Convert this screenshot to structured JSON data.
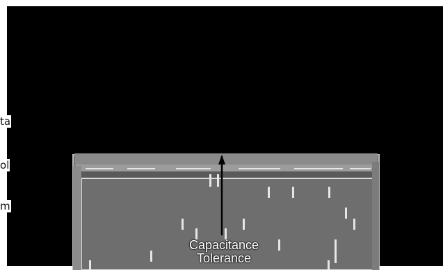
{
  "side_labels": [
    "ta",
    "ol",
    "m"
  ],
  "callout": {
    "line1": "Capacitance",
    "line2": "Tolerance"
  },
  "colors": {
    "background": "#000000",
    "component_fill": "#6e6e6e",
    "component_edge": "#c8c8c8",
    "marking": "#e6e6e6"
  },
  "icons": [
    "arrow-up-icon"
  ]
}
